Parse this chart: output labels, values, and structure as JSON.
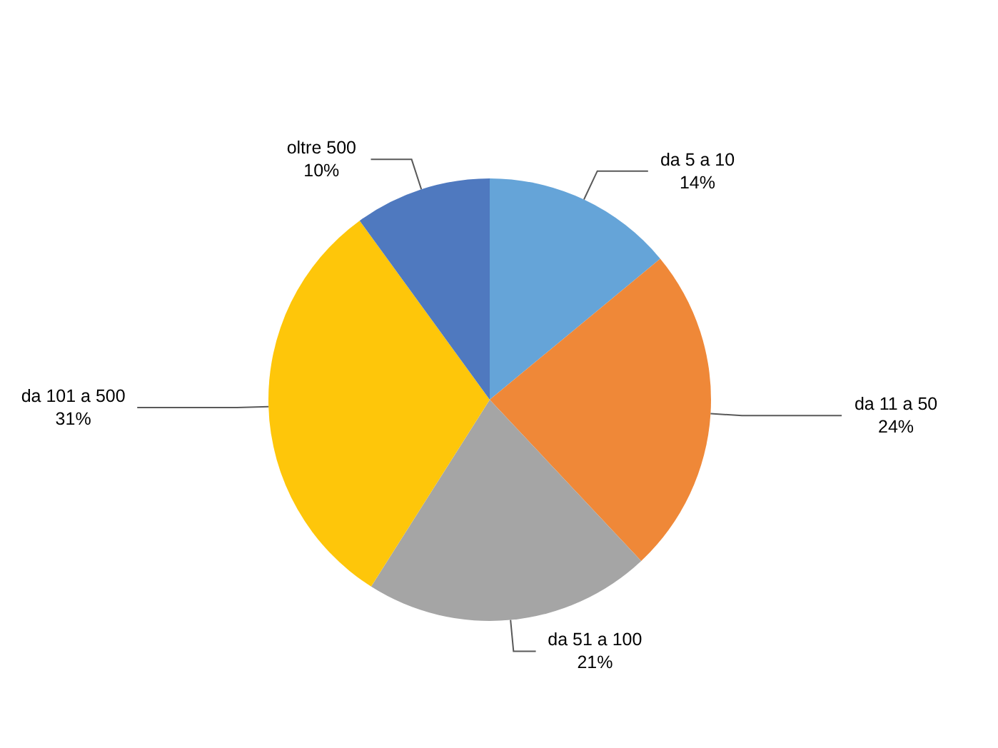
{
  "chart_data": {
    "type": "pie",
    "categories": [
      "da 5 a 10",
      "da 11 a 50",
      "da 51 a 100",
      "da 101 a 500",
      "oltre 500"
    ],
    "values": [
      14,
      24,
      21,
      31,
      10
    ],
    "colors": [
      "#65a4d8",
      "#ef8838",
      "#a5a5a5",
      "#fec60a",
      "#4f79bf"
    ],
    "value_labels": [
      "14%",
      "24%",
      "21%",
      "31%",
      "10%"
    ]
  }
}
